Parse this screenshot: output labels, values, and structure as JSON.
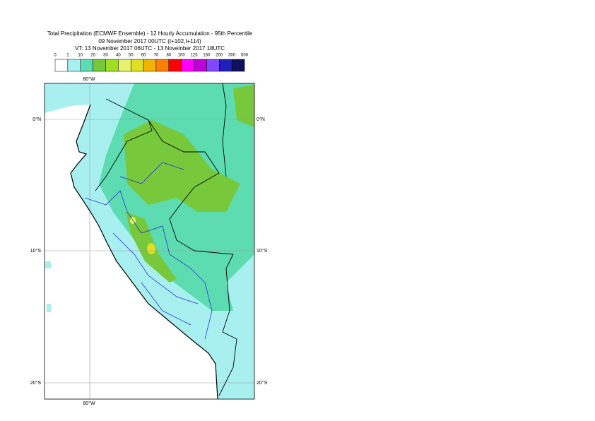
{
  "header": {
    "lines": [
      "Total Precipitation (ECMWF Ensemble) - 12 Hourly Accumulation - 95th Percentile",
      "09 November 2017 00UTC (t+102,t+114)",
      "VT: 13 November 2017 06UTC - 13 November 2017 18UTC"
    ]
  },
  "legend": {
    "labels": [
      "0",
      "1",
      "10",
      "20",
      "30",
      "40",
      "50",
      "60",
      "70",
      "80",
      "100",
      "125",
      "150",
      "200",
      "300",
      "500"
    ],
    "colors": [
      "#ffffff",
      "#a8f0f0",
      "#5cdcb0",
      "#78c83c",
      "#9ee020",
      "#e4f470",
      "#e0e020",
      "#f0b400",
      "#ff8000",
      "#ff0000",
      "#ff00ff",
      "#c000d8",
      "#8048ff",
      "#2020b8",
      "#101060"
    ]
  },
  "map": {
    "lon_labels": [
      "80°W"
    ],
    "lat_labels": [
      "0°N",
      "10°S",
      "20°S"
    ]
  }
}
